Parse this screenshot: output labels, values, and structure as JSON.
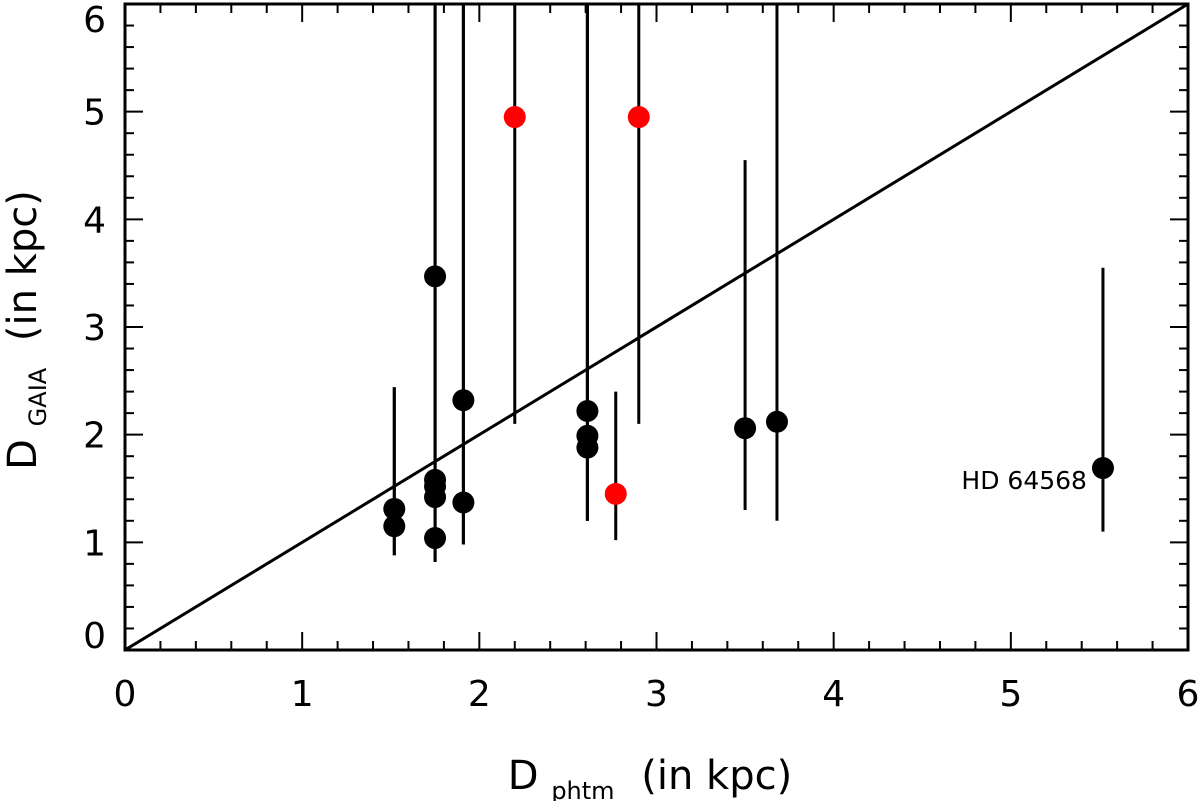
{
  "chart_data": {
    "type": "scatter",
    "title": "",
    "xlabel": {
      "main": "D",
      "sub": "phtm",
      "rest": "(in kpc)"
    },
    "ylabel": {
      "main": "D",
      "sub": "GAIA",
      "rest": "(in kpc)"
    },
    "xlim": [
      0,
      6
    ],
    "ylim": [
      0,
      6
    ],
    "xticks": [
      "0",
      "1",
      "2",
      "3",
      "4",
      "5",
      "6"
    ],
    "yticks": [
      "0",
      "1",
      "2",
      "3",
      "4",
      "5",
      "6"
    ],
    "grid": false,
    "reference_line": {
      "label": "1:1",
      "x": [
        0,
        6
      ],
      "y": [
        0,
        6
      ]
    },
    "colors": {
      "black": "#000000",
      "red": "#ff0000"
    },
    "series": [
      {
        "name": "black points",
        "color": "#000000",
        "points": [
          {
            "x": 1.52,
            "y": 1.15,
            "lo": 0.88,
            "hi": 2.44
          },
          {
            "x": 1.52,
            "y": 1.31,
            "lo": 0.88,
            "hi": 2.44
          },
          {
            "x": 1.75,
            "y": 1.04,
            "lo": 0.82,
            "hi": 6.0
          },
          {
            "x": 1.75,
            "y": 1.42,
            "lo": 0.82,
            "hi": 6.0
          },
          {
            "x": 1.75,
            "y": 1.52,
            "lo": 0.82,
            "hi": 6.0
          },
          {
            "x": 1.75,
            "y": 1.58,
            "lo": 0.82,
            "hi": 6.0
          },
          {
            "x": 1.75,
            "y": 3.47,
            "lo": 0.82,
            "hi": 6.0
          },
          {
            "x": 1.91,
            "y": 1.37,
            "lo": 0.98,
            "hi": 6.0
          },
          {
            "x": 1.91,
            "y": 2.32,
            "lo": 0.98,
            "hi": 6.0
          },
          {
            "x": 2.61,
            "y": 1.88,
            "lo": 1.2,
            "hi": 6.0
          },
          {
            "x": 2.61,
            "y": 1.99,
            "lo": 1.2,
            "hi": 6.0
          },
          {
            "x": 2.61,
            "y": 2.22,
            "lo": 1.2,
            "hi": 6.0
          },
          {
            "x": 3.5,
            "y": 2.06,
            "lo": 1.3,
            "hi": 4.55
          },
          {
            "x": 3.68,
            "y": 2.12,
            "lo": 1.2,
            "hi": 6.0
          },
          {
            "x": 5.52,
            "y": 1.69,
            "lo": 1.1,
            "hi": 3.55
          }
        ]
      },
      {
        "name": "red points",
        "color": "#ff0000",
        "points": [
          {
            "x": 2.2,
            "y": 4.95,
            "lo": 2.1,
            "hi": 6.0
          },
          {
            "x": 2.9,
            "y": 4.95,
            "lo": 2.1,
            "hi": 6.0
          },
          {
            "x": 2.77,
            "y": 1.45,
            "lo": 1.02,
            "hi": 2.4
          }
        ]
      }
    ],
    "annotations": [
      {
        "text": "HD 64568",
        "x": 5.52,
        "y": 1.69
      }
    ]
  }
}
